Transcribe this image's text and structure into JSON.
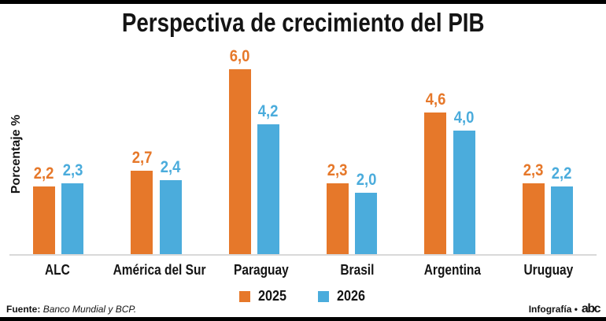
{
  "chart_data": {
    "type": "bar",
    "title": "Perspectiva de crecimiento del PIB",
    "ylabel": "Porcentaje %",
    "xlabel": "",
    "categories": [
      "ALC",
      "América del Sur",
      "Paraguay",
      "Brasil",
      "Argentina",
      "Uruguay"
    ],
    "series": [
      {
        "name": "2025",
        "color": "#E6782A",
        "values": [
          2.2,
          2.7,
          6.0,
          2.3,
          4.6,
          2.3
        ]
      },
      {
        "name": "2026",
        "color": "#4BACDC",
        "values": [
          2.3,
          2.4,
          4.2,
          2.0,
          4.0,
          2.2
        ]
      }
    ],
    "ylim": [
      0,
      6.5
    ],
    "grid": false,
    "legend_position": "bottom",
    "value_decimal_separator": ","
  },
  "footer": {
    "source_label": "Fuente:",
    "source_text": "Banco Mundial y BCP.",
    "credit": "Infografía •",
    "logo_text": "abc"
  }
}
